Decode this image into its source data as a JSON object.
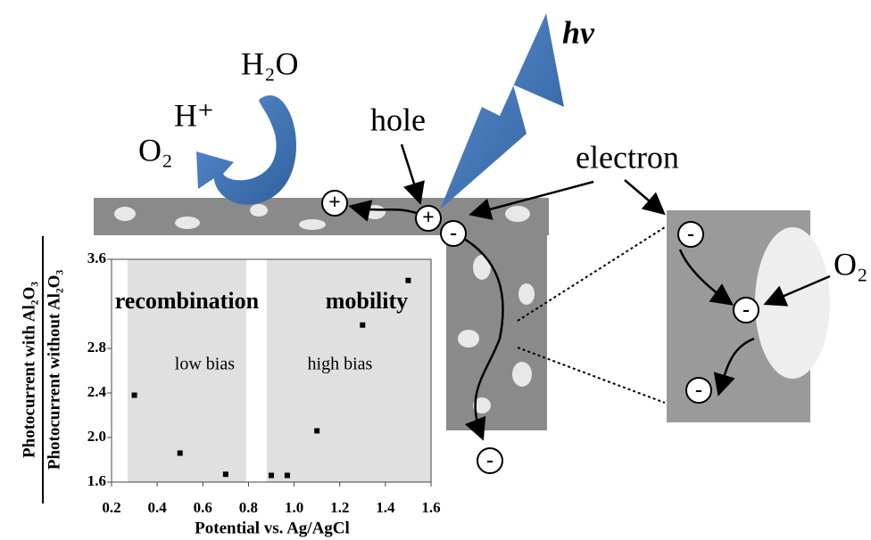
{
  "diagram": {
    "h2o": "H₂O",
    "h_plus": "H⁺",
    "o2_left": "O₂",
    "hole": "hole",
    "hv": "hv",
    "electron": "electron",
    "o2_right": "O₂",
    "charges": [
      "+",
      "+",
      "-",
      "-",
      "-",
      "-",
      "-"
    ]
  },
  "chart_data": {
    "type": "scatter",
    "y_label_top": "Photocurrent with Al₂O₃",
    "y_label_bottom": "Photocurrent without Al₂O₃",
    "x_label": "Potential vs. Ag/AgCl",
    "x": [
      0.3,
      0.5,
      0.7,
      0.9,
      0.97,
      1.1,
      1.3,
      1.5
    ],
    "values": [
      2.38,
      1.86,
      1.67,
      1.66,
      1.66,
      2.06,
      3.01,
      3.41
    ],
    "color": "#000000",
    "xlim": [
      0.2,
      1.6
    ],
    "ylim": [
      1.6,
      3.6
    ],
    "xticks": [
      0.2,
      0.4,
      0.6,
      0.8,
      {
        "value": 1,
        "label": "1.0"
      },
      1.2,
      1.4,
      1.6
    ],
    "yticks": [
      1.6,
      {
        "value": 2,
        "label": "2.0"
      },
      2.4,
      2.8,
      3.6
    ],
    "regions": [
      {
        "label": "recombination",
        "sublabel": "low bias",
        "xrange": [
          0.27,
          0.79
        ],
        "color": "#e0e0e0"
      },
      {
        "label": "mobility",
        "sublabel": "high bias",
        "xrange": [
          0.88,
          1.6
        ],
        "color": "#e0e0e0"
      }
    ]
  }
}
